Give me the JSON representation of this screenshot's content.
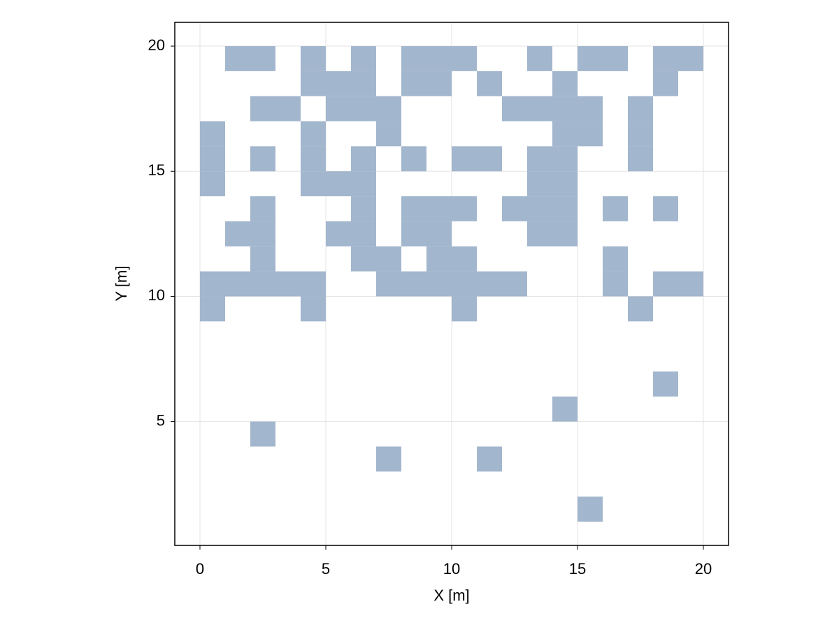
{
  "chart_data": {
    "type": "heatmap",
    "xlabel": "X [m]",
    "ylabel": "Y [m]",
    "x": [
      1,
      2,
      4,
      6,
      8,
      9,
      10,
      13,
      15,
      16,
      18,
      19,
      4,
      5,
      6,
      8,
      9,
      11,
      14,
      18,
      2,
      3,
      5,
      6,
      7,
      12,
      13,
      14,
      15,
      17,
      0,
      4,
      7,
      14,
      15,
      17,
      0,
      2,
      4,
      6,
      8,
      10,
      11,
      13,
      14,
      17,
      0,
      4,
      5,
      6,
      13,
      14,
      2,
      6,
      8,
      9,
      10,
      12,
      13,
      14,
      16,
      18,
      1,
      2,
      5,
      6,
      8,
      9,
      13,
      14,
      2,
      6,
      7,
      9,
      10,
      16,
      0,
      1,
      2,
      3,
      4,
      7,
      8,
      9,
      10,
      11,
      12,
      16,
      18,
      19,
      0,
      4,
      10,
      17,
      18,
      14,
      2,
      7,
      11,
      15
    ],
    "y": [
      19,
      19,
      19,
      19,
      19,
      19,
      19,
      19,
      19,
      19,
      19,
      19,
      18,
      18,
      18,
      18,
      18,
      18,
      18,
      18,
      17,
      17,
      17,
      17,
      17,
      17,
      17,
      17,
      17,
      17,
      16,
      16,
      16,
      16,
      16,
      16,
      15,
      15,
      15,
      15,
      15,
      15,
      15,
      15,
      15,
      15,
      14,
      14,
      14,
      14,
      14,
      14,
      13,
      13,
      13,
      13,
      13,
      13,
      13,
      13,
      13,
      13,
      12,
      12,
      12,
      12,
      12,
      12,
      12,
      12,
      11,
      11,
      11,
      11,
      11,
      11,
      10,
      10,
      10,
      10,
      10,
      10,
      10,
      10,
      10,
      10,
      10,
      10,
      10,
      10,
      9,
      9,
      9,
      9,
      6,
      5,
      4,
      3,
      3,
      1
    ],
    "color": "#a2b6cd",
    "xlim": [
      -1,
      21
    ],
    "ylim": [
      0.05,
      20.95
    ],
    "xticks": [
      0,
      5,
      10,
      15,
      20
    ],
    "yticks": [
      5,
      10,
      15,
      20
    ],
    "grid": true
  }
}
